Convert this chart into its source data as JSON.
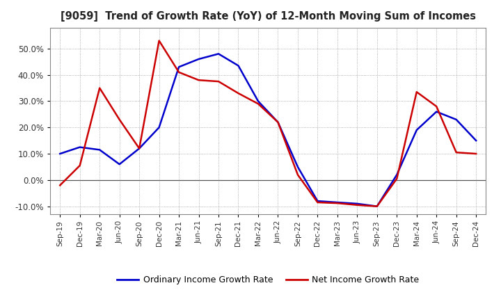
{
  "title": "[9059]  Trend of Growth Rate (YoY) of 12-Month Moving Sum of Incomes",
  "x_labels": [
    "Sep-19",
    "Dec-19",
    "Mar-20",
    "Jun-20",
    "Sep-20",
    "Dec-20",
    "Mar-21",
    "Jun-21",
    "Sep-21",
    "Dec-21",
    "Mar-22",
    "Jun-22",
    "Sep-22",
    "Dec-22",
    "Mar-23",
    "Jun-23",
    "Sep-23",
    "Dec-23",
    "Mar-24",
    "Jun-24",
    "Sep-24",
    "Dec-24"
  ],
  "ordinary_income": [
    10.0,
    12.5,
    11.5,
    6.0,
    12.0,
    20.0,
    43.0,
    46.0,
    48.0,
    43.5,
    30.0,
    22.0,
    5.0,
    -8.0,
    -8.5,
    -9.0,
    -10.0,
    2.0,
    19.0,
    26.0,
    23.0,
    15.0
  ],
  "net_income": [
    -2.0,
    5.5,
    35.0,
    23.0,
    12.0,
    53.0,
    41.0,
    38.0,
    37.5,
    33.0,
    29.0,
    22.0,
    2.0,
    -8.5,
    -8.8,
    -9.5,
    -10.0,
    0.5,
    33.5,
    28.0,
    10.5,
    10.0
  ],
  "ordinary_color": "#0000cc",
  "net_color": "#cc0000",
  "background_color": "#ffffff",
  "plot_bg_color": "#ffffff",
  "grid_color": "#999999",
  "ylim": [
    -13,
    58
  ],
  "yticks": [
    -10.0,
    0.0,
    10.0,
    20.0,
    30.0,
    40.0,
    50.0
  ],
  "legend_ordinary": "Ordinary Income Growth Rate",
  "legend_net": "Net Income Growth Rate",
  "linewidth": 1.8
}
